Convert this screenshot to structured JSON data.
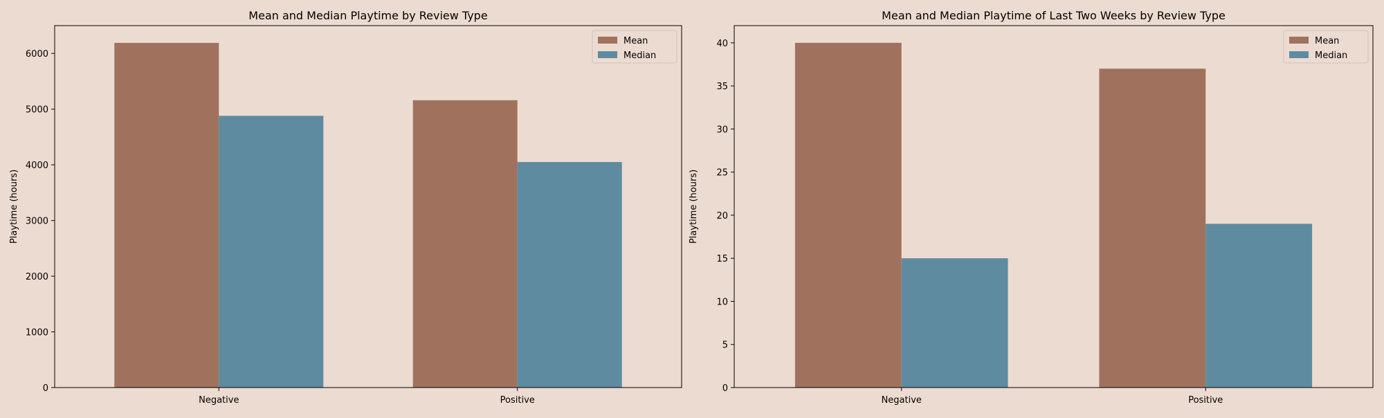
{
  "chart_data": [
    {
      "type": "bar",
      "title": "Mean and Median Playtime by Review Type",
      "xlabel": "",
      "ylabel": "Playtime (hours)",
      "categories": [
        "Negative",
        "Positive"
      ],
      "ylim": [
        0,
        6500
      ],
      "yticks": [
        0,
        1000,
        2000,
        3000,
        4000,
        5000,
        6000
      ],
      "grid": false,
      "legend_position": "top-right",
      "series": [
        {
          "name": "Mean",
          "color": "#a0725d",
          "values": [
            6190,
            5160
          ]
        },
        {
          "name": "Median",
          "color": "#5e8ba0",
          "values": [
            4880,
            4050
          ]
        }
      ]
    },
    {
      "type": "bar",
      "title": "Mean and Median Playtime of Last Two Weeks  by Review Type",
      "xlabel": "",
      "ylabel": "Playtime (hours)",
      "categories": [
        "Negative",
        "Positive"
      ],
      "ylim": [
        0,
        42
      ],
      "yticks": [
        0,
        5,
        10,
        15,
        20,
        25,
        30,
        35,
        40
      ],
      "grid": false,
      "legend_position": "top-right",
      "series": [
        {
          "name": "Mean",
          "color": "#a0725d",
          "values": [
            40,
            37
          ]
        },
        {
          "name": "Median",
          "color": "#5e8ba0",
          "values": [
            15,
            19
          ]
        }
      ]
    }
  ],
  "colors": {
    "background": "#ecdbd0",
    "axes": "#000000"
  }
}
